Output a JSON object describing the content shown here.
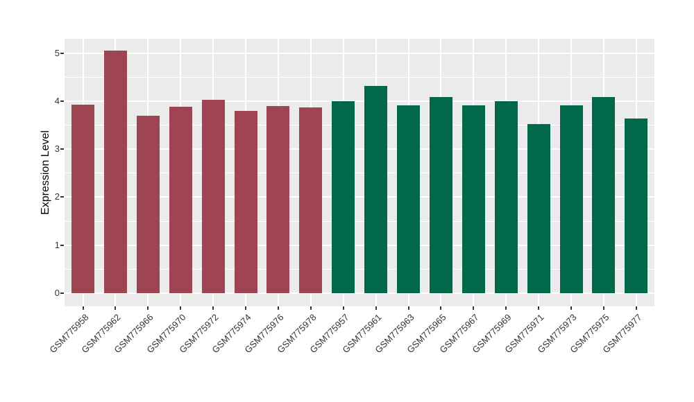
{
  "chart": {
    "ylabel": "Expression Level",
    "panel_bg": "#EBEBEB",
    "grid_color": "#FFFFFF",
    "axis_text_color": "#333333",
    "tick_mark_color": "#333333"
  },
  "chart_data": {
    "type": "bar",
    "title": "",
    "xlabel": "",
    "ylabel": "Expression Level",
    "ylim": [
      0,
      5.3
    ],
    "yticks": [
      0,
      1,
      2,
      3,
      4,
      5
    ],
    "yminor": [
      0.5,
      1.5,
      2.5,
      3.5,
      4.5
    ],
    "grid": "white major and minor gridlines on gray panel",
    "legend": "none",
    "categories": [
      "GSM775958",
      "GSM775962",
      "GSM775966",
      "GSM775970",
      "GSM775972",
      "GSM775974",
      "GSM775976",
      "GSM775978",
      "GSM775957",
      "GSM775961",
      "GSM775963",
      "GSM775965",
      "GSM775967",
      "GSM775969",
      "GSM775971",
      "GSM775973",
      "GSM775975",
      "GSM775977"
    ],
    "values": [
      3.92,
      5.05,
      3.7,
      3.88,
      4.03,
      3.79,
      3.9,
      3.87,
      3.99,
      4.31,
      3.91,
      4.08,
      3.91,
      4.0,
      3.52,
      3.91,
      4.08,
      3.64
    ],
    "groups": [
      {
        "name": "group-red",
        "color": "#9E4452",
        "count": 8
      },
      {
        "name": "group-green",
        "color": "#02684B",
        "count": 10
      }
    ]
  }
}
